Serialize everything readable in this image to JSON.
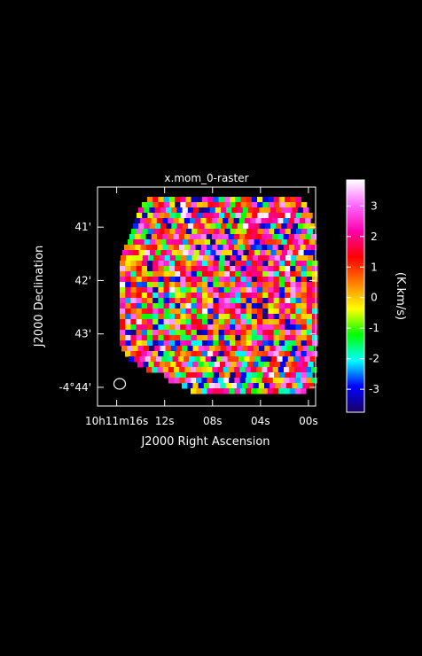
{
  "chart_data": {
    "type": "heatmap",
    "title": "x.mom_0-raster",
    "xlabel": "J2000 Right Ascension",
    "ylabel": "J2000 Declination",
    "x_ticks": [
      {
        "label": "10h11m16s",
        "ra_s": 16
      },
      {
        "label": "12s",
        "ra_s": 12
      },
      {
        "label": "08s",
        "ra_s": 8
      },
      {
        "label": "04s",
        "ra_s": 4
      },
      {
        "label": "00s",
        "ra_s": 0
      }
    ],
    "y_ticks": [
      {
        "label": "41'",
        "dec_arcmin": 41
      },
      {
        "label": "42'",
        "dec_arcmin": 42
      },
      {
        "label": "43'",
        "dec_arcmin": 43
      },
      {
        "label": "-4°44'",
        "dec_arcmin": 44
      }
    ],
    "x_range_ra_s": [
      17.6,
      -0.6
    ],
    "y_range_dec_arcmin": [
      40.25,
      44.35
    ],
    "colorbar": {
      "label": "(K.km/s)",
      "range": [
        -3.75,
        3.85
      ],
      "ticks": [
        3,
        2,
        1,
        0,
        -1,
        -2,
        -3
      ],
      "colors": [
        "#1a0066",
        "#0000ff",
        "#00ffff",
        "#00ff00",
        "#ffff00",
        "#ff8000",
        "#ff0000",
        "#ff00aa",
        "#ff66ff",
        "#ffffff"
      ]
    },
    "beam": "ellipse",
    "values_note": "",
    "values": []
  }
}
